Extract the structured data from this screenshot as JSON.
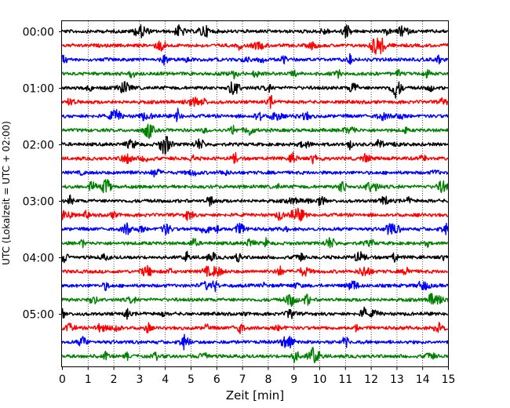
{
  "chart_data": {
    "type": "line",
    "title": "",
    "xlabel": "Zeit  [min]",
    "ylabel": "UTC (Lokalzeit = UTC + 02:00)",
    "xlim": [
      0,
      15
    ],
    "x_ticks": [
      0,
      1,
      2,
      3,
      4,
      5,
      6,
      7,
      8,
      9,
      10,
      11,
      12,
      13,
      14,
      15
    ],
    "x_tick_labels": [
      "0",
      "1",
      "2",
      "3",
      "4",
      "5",
      "6",
      "7",
      "8",
      "9",
      "10",
      "11",
      "12",
      "13",
      "14",
      "15"
    ],
    "y_tick_labels": [
      "00:00",
      "01:00",
      "02:00",
      "03:00",
      "04:00",
      "05:00"
    ],
    "grid": "vertical dotted lines at each minute",
    "trace_interval_minutes": 15,
    "color_cycle": [
      "#000000",
      "#ff0000",
      "#0000ff",
      "#008000"
    ],
    "series": [
      {
        "start": "00:00",
        "color": "#000000"
      },
      {
        "start": "00:15",
        "color": "#ff0000"
      },
      {
        "start": "00:30",
        "color": "#0000ff"
      },
      {
        "start": "00:45",
        "color": "#008000"
      },
      {
        "start": "01:00",
        "color": "#000000"
      },
      {
        "start": "01:15",
        "color": "#ff0000"
      },
      {
        "start": "01:30",
        "color": "#0000ff"
      },
      {
        "start": "01:45",
        "color": "#008000"
      },
      {
        "start": "02:00",
        "color": "#000000"
      },
      {
        "start": "02:15",
        "color": "#ff0000"
      },
      {
        "start": "02:30",
        "color": "#0000ff"
      },
      {
        "start": "02:45",
        "color": "#008000"
      },
      {
        "start": "03:00",
        "color": "#000000"
      },
      {
        "start": "03:15",
        "color": "#ff0000"
      },
      {
        "start": "03:30",
        "color": "#0000ff"
      },
      {
        "start": "03:45",
        "color": "#008000"
      },
      {
        "start": "04:00",
        "color": "#000000"
      },
      {
        "start": "04:15",
        "color": "#ff0000"
      },
      {
        "start": "04:30",
        "color": "#0000ff"
      },
      {
        "start": "04:45",
        "color": "#008000"
      },
      {
        "start": "05:00",
        "color": "#000000"
      },
      {
        "start": "05:15",
        "color": "#ff0000"
      },
      {
        "start": "05:30",
        "color": "#0000ff"
      },
      {
        "start": "05:45",
        "color": "#008000"
      }
    ]
  }
}
